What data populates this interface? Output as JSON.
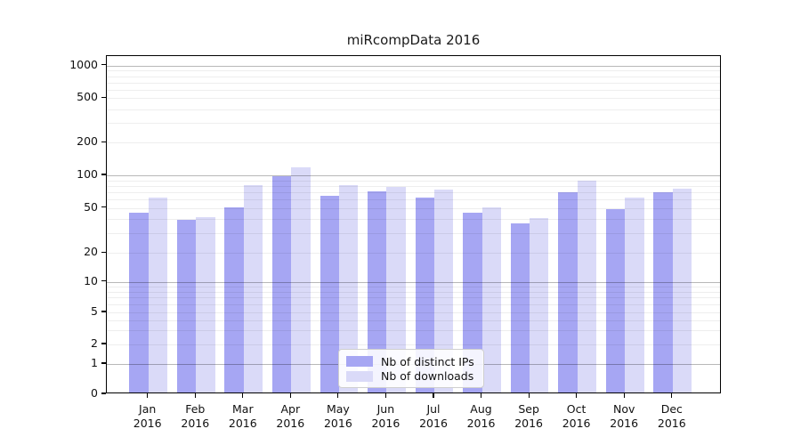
{
  "title": "miRcompData 2016",
  "x_axis": {
    "months": [
      "Jan",
      "Feb",
      "Mar",
      "Apr",
      "May",
      "Jun",
      "Jul",
      "Aug",
      "Sep",
      "Oct",
      "Nov",
      "Dec"
    ],
    "year": "2016"
  },
  "y_axis": {
    "tick_labels": [
      "0",
      "1",
      "2",
      "5",
      "10",
      "20",
      "50",
      "100",
      "200",
      "500",
      "1000"
    ]
  },
  "legend": {
    "items": [
      "Nb of distinct IPs",
      "Nb of downloads"
    ]
  },
  "chart_data": {
    "type": "bar",
    "title": "miRcompData 2016",
    "categories": [
      "Jan 2016",
      "Feb 2016",
      "Mar 2016",
      "Apr 2016",
      "May 2016",
      "Jun 2016",
      "Jul 2016",
      "Aug 2016",
      "Sep 2016",
      "Oct 2016",
      "Nov 2016",
      "Dec 2016"
    ],
    "series": [
      {
        "name": "Nb of distinct IPs",
        "color": "#a6a6f3",
        "values": [
          44,
          38,
          49,
          95,
          62,
          69,
          60,
          44,
          35,
          67,
          47,
          67
        ]
      },
      {
        "name": "Nb of downloads",
        "color": "#dadaf8",
        "values": [
          60,
          40,
          78,
          115,
          78,
          76,
          71,
          49,
          39,
          86,
          60,
          72
        ]
      }
    ],
    "xlabel": "",
    "ylabel": "",
    "yscale": "symlog",
    "yticks": [
      0,
      1,
      2,
      5,
      10,
      20,
      50,
      100,
      200,
      500,
      1000
    ],
    "ylim": [
      0,
      1200
    ],
    "grid": true,
    "legend_position": "lower center inside plot"
  }
}
